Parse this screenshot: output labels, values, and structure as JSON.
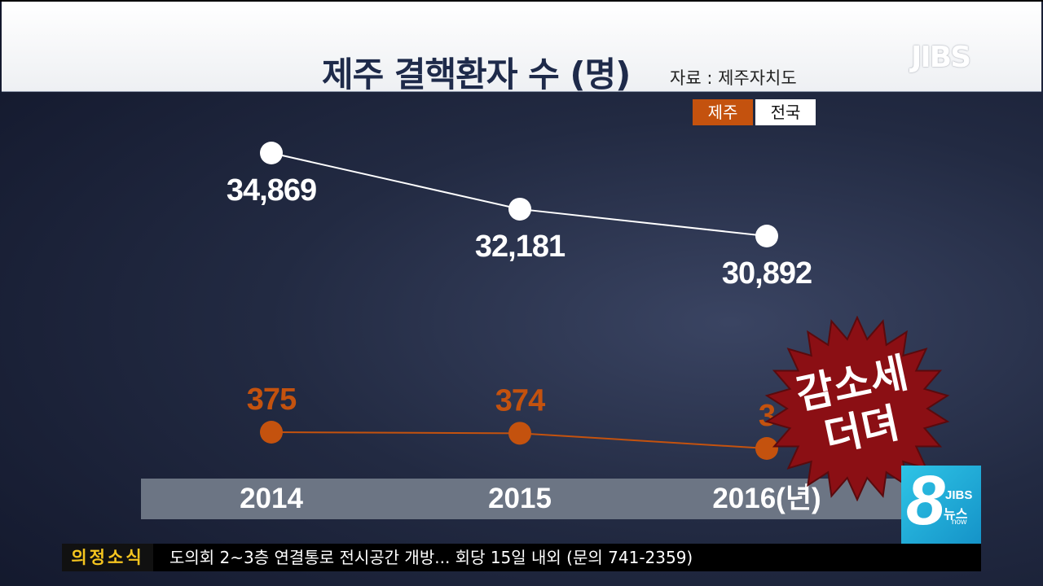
{
  "title": "제주 결핵환자 수 (명)",
  "source": "자료 : 제주자치도",
  "watermark": "JIBS",
  "legend": {
    "jeju": "제주",
    "nation": "전국"
  },
  "badge": {
    "line1": "감소세",
    "line2": "더뎌"
  },
  "logo": {
    "number": "8",
    "brand": "JIBS",
    "name": "뉴스",
    "sub": "now"
  },
  "ticker": {
    "label": "의정소식",
    "text": "도의회 2~3층 연결통로 전시공간 개방... 회당 15일 내외 (문의 741-2359)"
  },
  "colors": {
    "jeju": "#c4520e",
    "nation": "#ffffff",
    "badge": "#8b0f14"
  },
  "chart_data": {
    "type": "line",
    "title": "제주 결핵환자 수 (명)",
    "categories": [
      "2014",
      "2015",
      "2016(년)"
    ],
    "series": [
      {
        "name": "전국",
        "values": [
          34869,
          32181,
          30892
        ],
        "labels": [
          "34,869",
          "32,181",
          "30,892"
        ]
      },
      {
        "name": "제주",
        "values": [
          375,
          374,
          3
        ],
        "labels": [
          "375",
          "374",
          "3"
        ]
      }
    ],
    "grid": false,
    "legend": "top-right"
  }
}
